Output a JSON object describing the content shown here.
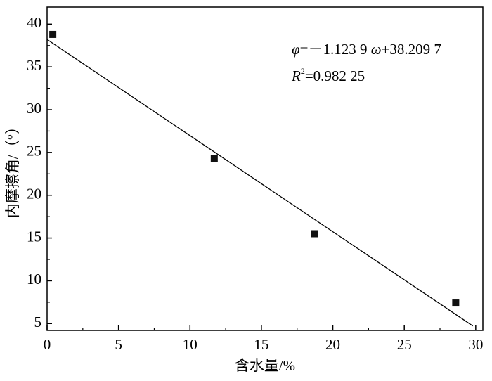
{
  "chart_data": {
    "type": "scatter",
    "x_label": "含水量/%",
    "y_label": "内摩擦角/（°）",
    "x": [
      0.4,
      11.7,
      18.7,
      28.6
    ],
    "values": [
      38.8,
      24.3,
      15.5,
      7.4
    ],
    "color": "#111111",
    "fit": {
      "slope": -1.1239,
      "intercept": 38.2097,
      "x_range": [
        0,
        29.8
      ],
      "color": "#000000"
    },
    "annotation": {
      "phi": "φ",
      "eq1": "=－1.123 9 ",
      "omega": "ω",
      "eq2": "+38.209 7",
      "r": "R",
      "sup": "2",
      "r2": "=0.982 25"
    },
    "xlim": [
      0,
      30.5
    ],
    "ylim": [
      4.2,
      42
    ],
    "xticks": [
      0,
      5,
      10,
      15,
      20,
      25,
      30
    ],
    "xminorticks": [
      2.5,
      7.5,
      12.5,
      17.5,
      22.5,
      27.5
    ],
    "yticks": [
      5,
      10,
      15,
      20,
      25,
      30,
      35,
      40
    ],
    "yminorticks": [
      7.5,
      12.5,
      17.5,
      22.5,
      27.5,
      32.5,
      37.5
    ]
  }
}
